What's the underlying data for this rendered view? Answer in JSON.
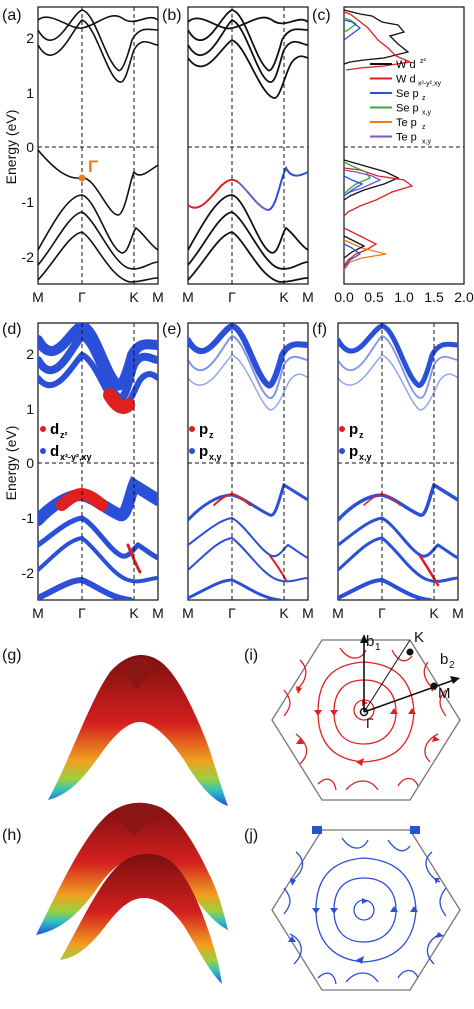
{
  "panel_labels": {
    "a": "(a)",
    "b": "(b)",
    "c": "(c)",
    "d": "(d)",
    "e": "(e)",
    "f": "(f)",
    "g": "(g)",
    "h": "(h)",
    "i": "(i)",
    "j": "(j)"
  },
  "band_axes": {
    "ylabel": "Energy (eV)",
    "yticks": [
      "2",
      "1",
      "0",
      "-1",
      "-2"
    ],
    "kpath": [
      "M",
      "Γ",
      "K",
      "M"
    ]
  },
  "gamma_marker": "Γ",
  "dos_xticks": [
    "0.0",
    "0.5",
    "1.0",
    "1.5",
    "2.0"
  ],
  "legend_c": [
    {
      "label": "W d",
      "sup": "z²",
      "sub": "",
      "color": "#111111"
    },
    {
      "label": "W d",
      "sup": "",
      "sub": "x²-y²,xy",
      "color": "#e02020"
    },
    {
      "label": "Se p",
      "sup": "",
      "sub": "z",
      "color": "#2a4fd8"
    },
    {
      "label": "Se p",
      "sup": "",
      "sub": "x,y",
      "color": "#38a838"
    },
    {
      "label": "Te p",
      "sup": "",
      "sub": "z",
      "color": "#f07a1a"
    },
    {
      "label": "Te p",
      "sup": "",
      "sub": "x,y",
      "color": "#7a55c8"
    }
  ],
  "legend_d": [
    {
      "label": "d",
      "sub": "z²",
      "color": "#e02020"
    },
    {
      "label": "d",
      "sub": "x²-y²,xy",
      "color": "#2a4fd8"
    }
  ],
  "legend_ef": [
    {
      "label": "p",
      "sub": "z",
      "color": "#e02020"
    },
    {
      "label": "p",
      "sub": "x,y",
      "color": "#2a4fd8"
    }
  ],
  "bz_labels": {
    "b1": "b",
    "b1_sub": "1",
    "b2": "b",
    "b2_sub": "2",
    "K": "K",
    "M": "M",
    "G": "Γ"
  },
  "colors": {
    "red": "#e02020",
    "blue": "#2a4fd8",
    "black": "#111111",
    "grid": "#333333"
  }
}
